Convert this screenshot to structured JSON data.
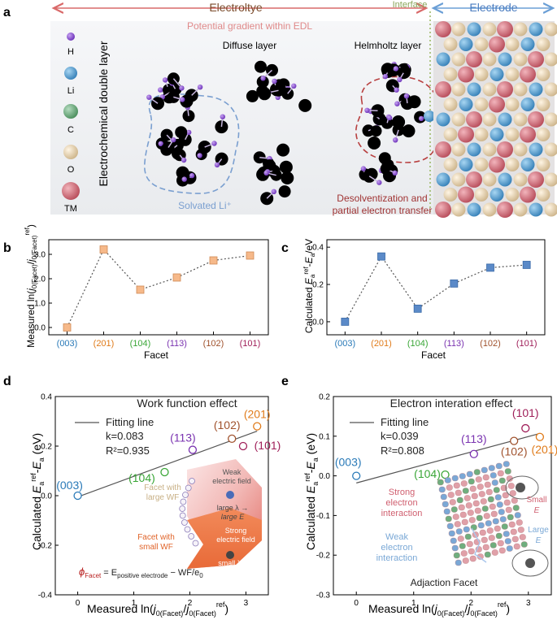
{
  "panel_a": {
    "label": "a",
    "top": {
      "electrolyte": "Electroltye",
      "interface": "Interface",
      "electrode": "Electrode",
      "gradient": "Potential gradient within EDL"
    },
    "vertical_label": "Electrochemical double layer",
    "legend": [
      "H",
      "Li",
      "C",
      "O",
      "TM"
    ],
    "legend_colors": [
      "#8a4fd6",
      "#55a6d8",
      "#6fae7e",
      "#e8d4b0",
      "#d6737f"
    ],
    "diffuse": "Diffuse layer",
    "helmholtz": "Helmholtz layer",
    "solvated": "Solvated Li⁺",
    "desolv1": "Desolventization and",
    "desolv2": "partial electron transfer"
  },
  "panel_b": {
    "label": "b",
    "ylabel": "Measured ln(j0(Facet)/j0(Facet)ref)",
    "xlabel": "Facet"
  },
  "panel_c": {
    "label": "c",
    "ylabel": "Calculated Ea ref - Ea /eV",
    "xlabel": "Facet"
  },
  "panel_d": {
    "label": "d",
    "title": "Work function effect",
    "fit": "Fitting line",
    "k": "k=0.083",
    "r2": "R²=0.935",
    "ylabel": "Calculated Ea ref - Ea (eV)",
    "xlabel": "Measured ln(j0(Facet)/j0(Facet)ref)",
    "inset": {
      "weak1": "Weak",
      "weak2": "electric field",
      "large1": "Facet with",
      "large2": "large WF",
      "lam1": "large λ →",
      "lam2": "large E",
      "strong1": "Strong",
      "strong2": "electric field",
      "small1": "Facet with",
      "small2": "small WF",
      "slam1": "small λ →",
      "slam2": "small E",
      "eq1": "ϕ",
      "eq2": "Facet",
      "eq3": " = E",
      "eq4": "positive electrode",
      "eq5": " − WF/e",
      "eq6": "0"
    }
  },
  "panel_e": {
    "label": "e",
    "title": "Electron interation effect",
    "fit": "Fitting line",
    "k": "k=0.039",
    "r2": "R²=0.808",
    "ylabel": "Calculated Ea ref - Ea (eV)",
    "xlabel": "Measured ln(j0(Facet)/j0(Facet)ref)",
    "inset": {
      "strong1": "Strong",
      "strong2": "electron",
      "strong3": "interaction",
      "weak1": "Weak",
      "weak2": "electron",
      "weak3": "interaction",
      "small1": "Small",
      "small2": "E",
      "large1": "Large",
      "large2": "E",
      "adj": "Adjaction Facet"
    }
  },
  "chart_data": [
    {
      "type": "line",
      "panel": "b",
      "categories": [
        "(003)",
        "(201)",
        "(104)",
        "(113)",
        "(102)",
        "(101)"
      ],
      "category_colors": [
        "#2a7ab8",
        "#e07b1a",
        "#3aa637",
        "#7a33b0",
        "#a0522d",
        "#a0205a"
      ],
      "values": [
        0.0,
        3.2,
        1.55,
        2.05,
        2.75,
        2.95
      ],
      "ylim": [
        -0.3,
        3.6
      ],
      "yticks": [
        0.0,
        1.0,
        2.0,
        3.0
      ],
      "ytick_labels": [
        "0.0",
        "1.0",
        "2.0",
        "3.0"
      ],
      "marker_color": "#f6b98a",
      "marker_edge": "#d08a55",
      "xlabel": "Facet",
      "ylabel": "Measured ln(j0(Facet)/j0(Facet)ref)"
    },
    {
      "type": "line",
      "panel": "c",
      "categories": [
        "(003)",
        "(201)",
        "(104)",
        "(113)",
        "(102)",
        "(101)"
      ],
      "category_colors": [
        "#2a7ab8",
        "#e07b1a",
        "#3aa637",
        "#7a33b0",
        "#a0522d",
        "#a0205a"
      ],
      "values": [
        0.0,
        0.35,
        0.07,
        0.205,
        0.29,
        0.305
      ],
      "ylim": [
        -0.07,
        0.44
      ],
      "yticks": [
        0.0,
        0.2,
        0.4
      ],
      "ytick_labels": [
        "0.0",
        "0.2",
        "0.4"
      ],
      "marker_color": "#5b8ac8",
      "marker_edge": "#3a6aa8",
      "xlabel": "Facet",
      "ylabel": "Calculated Ea ref - Ea /eV"
    },
    {
      "type": "scatter",
      "panel": "d",
      "points": [
        {
          "label": "(003)",
          "x": 0.0,
          "y": 0.0,
          "color": "#2a7ab8"
        },
        {
          "label": "(104)",
          "x": 1.55,
          "y": 0.095,
          "color": "#3aa637"
        },
        {
          "label": "(113)",
          "x": 2.05,
          "y": 0.185,
          "color": "#7a33b0"
        },
        {
          "label": "(102)",
          "x": 2.75,
          "y": 0.23,
          "color": "#a0522d"
        },
        {
          "label": "(101)",
          "x": 2.95,
          "y": 0.2,
          "color": "#a0205a"
        },
        {
          "label": "(201)",
          "x": 3.2,
          "y": 0.28,
          "color": "#e07b1a"
        }
      ],
      "fit": {
        "k": 0.083,
        "intercept": -0.005
      },
      "xlim": [
        -0.4,
        3.4
      ],
      "ylim": [
        -0.4,
        0.4
      ],
      "xticks": [
        0,
        1,
        2,
        3
      ],
      "xtick_labels": [
        "0",
        "1",
        "2",
        "3"
      ],
      "yticks": [
        -0.4,
        -0.2,
        0.0,
        0.2,
        0.4
      ],
      "ytick_labels": [
        "-0.4",
        "-0.2",
        "0.0",
        "0.2",
        "0.4"
      ],
      "title": "Work function effect",
      "legend": "Fitting line"
    },
    {
      "type": "scatter",
      "panel": "e",
      "points": [
        {
          "label": "(003)",
          "x": 0.0,
          "y": 0.0,
          "color": "#2a7ab8"
        },
        {
          "label": "(104)",
          "x": 1.55,
          "y": 0.003,
          "color": "#3aa637"
        },
        {
          "label": "(113)",
          "x": 2.05,
          "y": 0.055,
          "color": "#7a33b0"
        },
        {
          "label": "(102)",
          "x": 2.75,
          "y": 0.088,
          "color": "#a0522d"
        },
        {
          "label": "(101)",
          "x": 2.95,
          "y": 0.12,
          "color": "#a0205a"
        },
        {
          "label": "(201)",
          "x": 3.2,
          "y": 0.098,
          "color": "#e07b1a"
        }
      ],
      "fit": {
        "k": 0.039,
        "intercept": -0.018
      },
      "xlim": [
        -0.4,
        3.4
      ],
      "ylim": [
        -0.3,
        0.2
      ],
      "xticks": [
        0,
        1,
        2,
        3
      ],
      "xtick_labels": [
        "0",
        "1",
        "2",
        "3"
      ],
      "yticks": [
        -0.3,
        -0.2,
        -0.1,
        0.0,
        0.1,
        0.2
      ],
      "ytick_labels": [
        "-0.3",
        "-0.2",
        "-0.1",
        "0.0",
        "0.1",
        "0.2"
      ],
      "title": "Electron interation effect",
      "legend": "Fitting line"
    }
  ]
}
